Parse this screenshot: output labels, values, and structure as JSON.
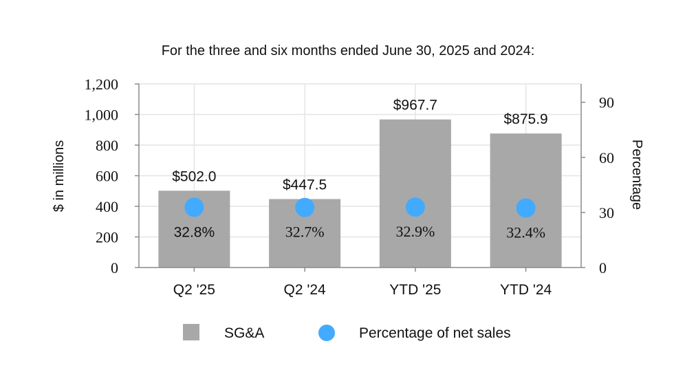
{
  "chart_data": {
    "type": "bar",
    "title": "For the three and six months ended June 30, 2025 and 2024:",
    "categories": [
      "Q2 '25",
      "Q2 '24",
      "YTD '25",
      "YTD '24"
    ],
    "series": [
      {
        "name": "SG&A",
        "axis": "left",
        "values": [
          502.0,
          447.5,
          967.7,
          875.9
        ],
        "labels": [
          "$502.0",
          "$447.5",
          "$967.7",
          "$875.9"
        ],
        "color": "#a8a8a8"
      },
      {
        "name": "Percentage of net sales",
        "axis": "right",
        "type": "scatter",
        "values": [
          32.8,
          32.7,
          32.9,
          32.4
        ],
        "labels": [
          "32.8%",
          "32.7%",
          "32.9%",
          "32.4%"
        ],
        "color": "#42aaff"
      }
    ],
    "ylabel": "$ in millions",
    "ylim": [
      0,
      1200
    ],
    "yticks": [
      0,
      200,
      400,
      600,
      800,
      1000,
      1200
    ],
    "ytick_labels": [
      "0",
      "200",
      "400",
      "600",
      "800",
      "1,000",
      "1,200"
    ],
    "y2label": "Percentage",
    "y2lim": [
      0,
      100
    ],
    "y2ticks": [
      0,
      30,
      60,
      90
    ],
    "y2tick_labels": [
      "0",
      "30",
      "60",
      "90"
    ],
    "grid": true,
    "legend": [
      {
        "label": "SG&A",
        "marker": "square",
        "color": "#a8a8a8"
      },
      {
        "label": "Percentage of net sales",
        "marker": "circle",
        "color": "#42aaff"
      }
    ],
    "legend_position": "bottom-center"
  }
}
